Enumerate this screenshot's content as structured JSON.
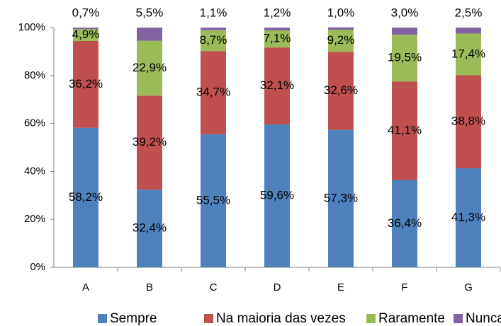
{
  "chart_data": {
    "type": "stacked_bar",
    "categories": [
      "A",
      "B",
      "C",
      "D",
      "E",
      "F",
      "G"
    ],
    "series": [
      {
        "name": "Sempre",
        "color": "#4f81bd",
        "values": [
          58.2,
          32.4,
          55.5,
          59.6,
          57.3,
          36.4,
          41.3
        ],
        "value_labels": [
          "58,2%",
          "32,4%",
          "55,5%",
          "59,6%",
          "57,3%",
          "36,4%",
          "41,3%"
        ]
      },
      {
        "name": "Na maioria das vezes",
        "color": "#c0504d",
        "values": [
          36.2,
          39.2,
          34.7,
          32.1,
          32.6,
          41.1,
          38.8
        ],
        "value_labels": [
          "36,2%",
          "39,2%",
          "34,7%",
          "32,1%",
          "32,6%",
          "41,1%",
          "38,8%"
        ]
      },
      {
        "name": "Raramente",
        "color": "#9bbb59",
        "values": [
          4.9,
          22.9,
          8.7,
          7.1,
          9.2,
          19.5,
          17.4
        ],
        "value_labels": [
          "4,9%",
          "22,9%",
          "8,7%",
          "7,1%",
          "9,2%",
          "19,5%",
          "17,4%"
        ]
      },
      {
        "name": "Nunca",
        "color": "#8064a2",
        "values": [
          0.7,
          5.5,
          1.1,
          1.2,
          1.0,
          3.0,
          2.5
        ],
        "value_labels": [
          "0,7%",
          "5,5%",
          "1,1%",
          "1,2%",
          "1,0%",
          "3,0%",
          "2,5%"
        ]
      }
    ],
    "ylim": [
      0,
      100
    ],
    "yticks": [
      {
        "value": 0,
        "label": "0%"
      },
      {
        "value": 20,
        "label": "20%"
      },
      {
        "value": 40,
        "label": "40%"
      },
      {
        "value": 60,
        "label": "60%"
      },
      {
        "value": 80,
        "label": "80%"
      },
      {
        "value": 100,
        "label": "100%"
      }
    ],
    "legend": "bottom"
  }
}
